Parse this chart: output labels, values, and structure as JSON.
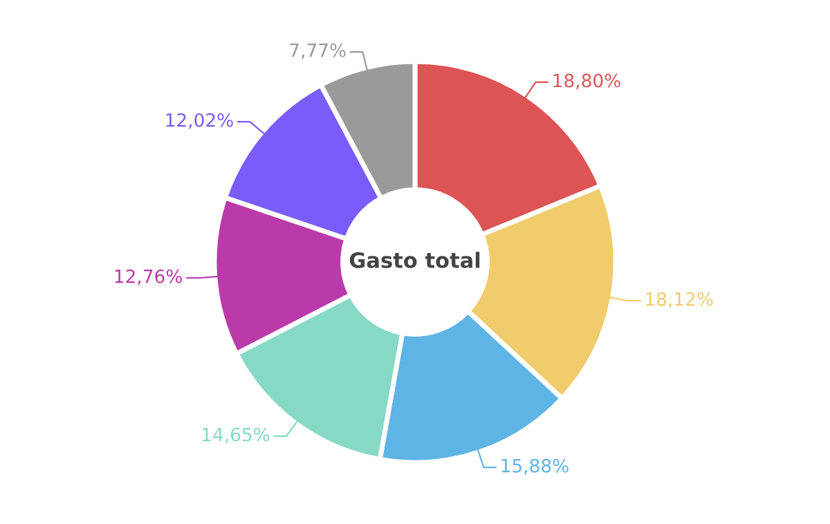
{
  "chart_data": {
    "type": "donut",
    "title": "Gasto total",
    "categories": [
      null,
      null,
      null,
      null,
      null,
      null,
      null
    ],
    "values": [
      18.8,
      18.12,
      15.88,
      14.65,
      12.76,
      12.02,
      7.77
    ],
    "colors": [
      "#dc5454",
      "#f0cc6c",
      "#5fb4e6",
      "#86d9c4",
      "#bb3aaa",
      "#7a5cfb",
      "#9a9a9a"
    ],
    "value_labels": [
      "18,80%",
      "18,12%",
      "15,88%",
      "14,65%",
      "12,76%",
      "12,02%",
      "7,77%"
    ],
    "legend": false
  }
}
